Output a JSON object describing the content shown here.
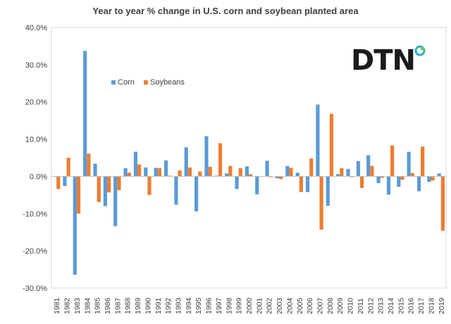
{
  "chart_data": {
    "type": "bar",
    "title": "Year to year % change in U.S. corn and soybean planted area",
    "categories": [
      "1981",
      "1982",
      "1983",
      "1984",
      "1985",
      "1986",
      "1987",
      "1988",
      "1989",
      "1990",
      "1991",
      "1992",
      "1993",
      "1994",
      "1995",
      "1996",
      "1997",
      "1998",
      "1999",
      "2000",
      "2001",
      "2002",
      "2003",
      "2004",
      "2005",
      "2006",
      "2007",
      "2008",
      "2009",
      "2010",
      "2011",
      "2012",
      "2013",
      "2014",
      "2015",
      "2016",
      "2017",
      "2018",
      "2019"
    ],
    "series": [
      {
        "name": "Corn",
        "color": "#5b9bd5",
        "values": [
          0.0,
          -2.6,
          -26.4,
          33.7,
          3.4,
          -8.0,
          -13.4,
          2.2,
          6.6,
          2.4,
          2.3,
          4.3,
          -7.6,
          7.8,
          -9.4,
          10.8,
          0.2,
          0.8,
          -3.4,
          2.7,
          -4.8,
          4.2,
          -0.5,
          2.8,
          1.0,
          -4.2,
          19.3,
          -7.9,
          0.6,
          2.0,
          4.1,
          5.7,
          -1.8,
          -4.9,
          -2.8,
          6.6,
          -4.0,
          -1.5,
          0.8
        ]
      },
      {
        "name": "Soybeans",
        "color": "#ed7d31",
        "values": [
          -3.4,
          5.0,
          -10.0,
          6.1,
          -6.9,
          -4.3,
          -3.7,
          1.0,
          3.2,
          -5.0,
          2.2,
          0.2,
          1.6,
          2.4,
          1.3,
          2.6,
          8.9,
          2.8,
          2.2,
          0.6,
          0.0,
          -0.2,
          -0.7,
          2.3,
          -4.2,
          4.8,
          -14.3,
          16.8,
          2.2,
          -0.2,
          -3.1,
          2.8,
          -0.4,
          8.3,
          -0.9,
          0.9,
          8.0,
          -1.1,
          -14.6
        ]
      }
    ],
    "ylim": [
      -30,
      40
    ],
    "yticks": [
      -30,
      -20,
      -10,
      0,
      10,
      20,
      30,
      40
    ],
    "ytick_labels": [
      "-30.0%",
      "-20.0%",
      "-10.0%",
      "0.0%",
      "10.0%",
      "20.0%",
      "30.0%",
      "40.0%"
    ],
    "xlabel": "",
    "ylabel": "",
    "grid": false,
    "legend": "upper-left-inside"
  },
  "logo": {
    "text": "DTN",
    "ring_color": "#2ab3c7",
    "dot_color": "#8dc63f"
  }
}
